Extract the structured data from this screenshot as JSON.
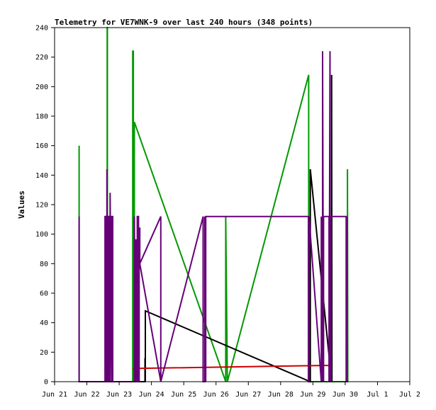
{
  "chart_data": {
    "type": "line",
    "title": "Telemetry for VE7WNK-9 over last 240 hours (348 points)",
    "xlabel": "",
    "ylabel": "Values",
    "x_ticks": [
      "Jun 21",
      "Jun 22",
      "Jun 23",
      "Jun 24",
      "Jun 25",
      "Jun 26",
      "Jun 27",
      "Jun 28",
      "Jun 29",
      "Jun 30",
      "Jul 1",
      "Jul 2"
    ],
    "y_ticks": [
      "0",
      "20",
      "40",
      "60",
      "80",
      "100",
      "120",
      "140",
      "160",
      "180",
      "200",
      "220",
      "240"
    ],
    "xlim": [
      0,
      11
    ],
    "ylim": [
      0,
      240
    ],
    "grid": false,
    "series": [
      {
        "color": "#009900",
        "x": [
          0.76,
          0.76,
          0.76,
          1.63,
          1.63,
          1.635,
          1.635,
          2.42,
          2.42,
          2.44,
          2.44,
          2.47,
          2.47,
          5.3,
          5.3,
          5.35,
          7.87,
          7.87,
          9.07,
          9.07,
          9.08
        ],
        "y": [
          0,
          160,
          0,
          0,
          240,
          240,
          0,
          0,
          224,
          224,
          0,
          0,
          176,
          0,
          112,
          0,
          208,
          0,
          0,
          144,
          0
        ]
      },
      {
        "color": "#000000",
        "x": [
          1.59,
          1.59,
          1.62,
          1.62,
          2.8,
          2.8,
          2.81,
          2.81,
          7.92,
          7.92,
          8.58,
          8.58,
          8.59
        ],
        "y": [
          0,
          48,
          0,
          0,
          0,
          16,
          0,
          48,
          0,
          144,
          0,
          208,
          0
        ]
      },
      {
        "color": "#cc0000",
        "x": [
          2.42,
          2.54,
          8.35,
          8.5
        ],
        "y": [
          9,
          9,
          11,
          11
        ]
      },
      {
        "color": "#660077",
        "x": [
          0.76,
          0.76,
          0.76,
          1.56,
          1.56,
          1.59,
          1.59,
          1.62,
          1.62,
          1.65,
          1.65,
          1.68,
          1.68,
          1.72,
          1.72,
          1.77,
          1.77,
          1.8,
          1.8,
          2.47,
          2.47,
          2.5,
          2.5,
          2.54,
          2.54,
          2.56,
          2.56,
          2.6,
          2.6,
          2.62,
          2.62,
          2.64,
          2.64,
          3.29,
          3.29,
          2.64,
          3.29,
          3.29,
          4.6,
          4.6,
          4.65,
          4.65,
          4.68,
          4.68,
          7.86,
          7.86,
          7.88,
          7.88,
          8.26,
          8.26,
          8.3,
          8.3,
          8.33,
          8.33,
          8.5,
          8.5,
          8.53,
          8.53,
          8.56,
          8.56,
          9.03,
          9.03,
          9.06,
          9.06
        ],
        "y": [
          0,
          112,
          0,
          0,
          112,
          112,
          0,
          0,
          144,
          0,
          112,
          112,
          0,
          0,
          128,
          0,
          112,
          112,
          0,
          0,
          112,
          0,
          96,
          96,
          0,
          0,
          112,
          112,
          0,
          0,
          104,
          104,
          80,
          112,
          0,
          80,
          112,
          0,
          112,
          0,
          0,
          112,
          0,
          112,
          112,
          0,
          0,
          112,
          0,
          112,
          0,
          224,
          0,
          112,
          112,
          0,
          224,
          0,
          0,
          112,
          112,
          0,
          0,
          112
        ]
      }
    ]
  }
}
